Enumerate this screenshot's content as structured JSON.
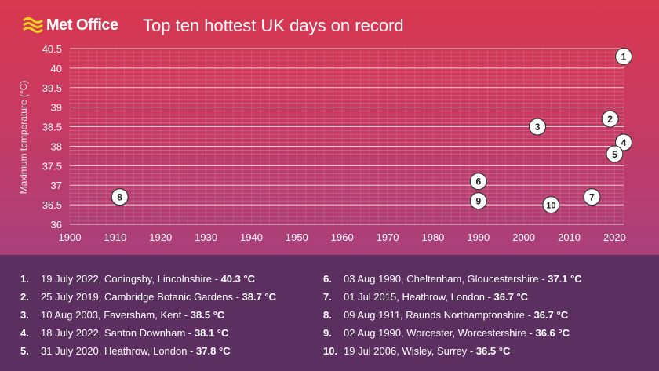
{
  "header": {
    "logo_text": "Met Office",
    "logo_icon": "met-office-waves-icon",
    "title": "Top ten hottest UK days on record"
  },
  "chart_data": {
    "type": "scatter",
    "title": "Top ten hottest UK days on record",
    "xlabel": "",
    "ylabel": "Maximum temperature (°C)",
    "xlim": [
      1900,
      2022
    ],
    "ylim": [
      36,
      40.5
    ],
    "x_ticks": [
      "1900",
      "1910",
      "1920",
      "1930",
      "1940",
      "1950",
      "1960",
      "1970",
      "1980",
      "1990",
      "2000",
      "2010",
      "2020"
    ],
    "y_ticks": [
      "36",
      "36.5",
      "37",
      "37.5",
      "38",
      "38.5",
      "39",
      "39.5",
      "40",
      "40.5"
    ],
    "grid": true,
    "points": [
      {
        "rank": "1",
        "year": 2022,
        "value": 40.3
      },
      {
        "rank": "2",
        "year": 2019,
        "value": 38.7
      },
      {
        "rank": "3",
        "year": 2003,
        "value": 38.5
      },
      {
        "rank": "4",
        "year": 2022,
        "value": 38.1
      },
      {
        "rank": "5",
        "year": 2020,
        "value": 37.8
      },
      {
        "rank": "6",
        "year": 1990,
        "value": 37.1
      },
      {
        "rank": "7",
        "year": 2015,
        "value": 36.7
      },
      {
        "rank": "8",
        "year": 1911,
        "value": 36.7
      },
      {
        "rank": "9",
        "year": 1990,
        "value": 36.6
      },
      {
        "rank": "10",
        "year": 2006,
        "value": 36.5
      }
    ]
  },
  "legend": {
    "left": [
      {
        "num": "1.",
        "text": "19 July 2022, Coningsby, Lincolnshire - ",
        "value": "40.3 °C"
      },
      {
        "num": "2.",
        "text": "25 July 2019, Cambridge Botanic Gardens - ",
        "value": "38.7 °C"
      },
      {
        "num": "3.",
        "text": "10 Aug 2003, Faversham, Kent - ",
        "value": "38.5 °C"
      },
      {
        "num": "4.",
        "text": "18 July 2022, Santon Downham - ",
        "value": "38.1 °C"
      },
      {
        "num": "5.",
        "text": "31 July 2020, Heathrow, London - ",
        "value": "37.8 °C"
      }
    ],
    "right": [
      {
        "num": "6.",
        "text": "03 Aug 1990, Cheltenham, Gloucestershire - ",
        "value": "37.1 °C"
      },
      {
        "num": "7.",
        "text": "01 Jul 2015, Heathrow, London - ",
        "value": "36.7 °C"
      },
      {
        "num": "8.",
        "text": "09 Aug 1911, Raunds Northamptonshire - ",
        "value": "36.7 °C"
      },
      {
        "num": "9.",
        "text": "02 Aug 1990, Worcester, Worcestershire - ",
        "value": "36.6 °C"
      },
      {
        "num": "10.",
        "text": "19 Jul 2006, Wisley, Surrey - ",
        "value": "36.5 °C"
      }
    ]
  }
}
